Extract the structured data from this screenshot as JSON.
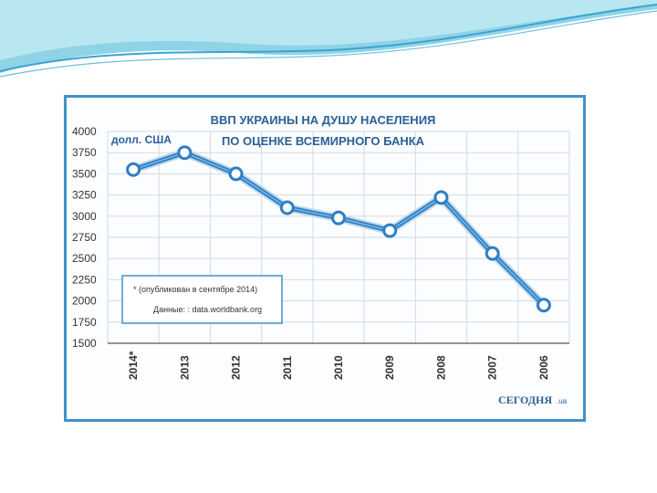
{
  "chart_data": {
    "type": "line",
    "title": "ВВП УКРАИНЫ НА ДУШУ НАСЕЛЕНИЯ",
    "subtitle": "ПО ОЦЕНКЕ ВСЕМИРНОГО БАНКА",
    "ylabel": "долл. США",
    "xlabel": "",
    "categories": [
      "2014*",
      "2013",
      "2012",
      "2011",
      "2010",
      "2009",
      "2008",
      "2007",
      "2006"
    ],
    "values": [
      3550,
      3750,
      3500,
      3100,
      2980,
      2830,
      3220,
      2560,
      1950
    ],
    "ylim": [
      1500,
      4000
    ],
    "yticks": [
      1500,
      1750,
      2000,
      2250,
      2500,
      2750,
      3000,
      3250,
      3500,
      3750,
      4000
    ],
    "grid": true,
    "annotation": {
      "line1": "* (опубликован в сентябре 2014)",
      "line2": "Данные: : data.worldbank.org"
    },
    "source_logo": "СЕГОДНЯ",
    "source_logo_suffix": ".ua",
    "colors": {
      "line": "#2e7fc4",
      "marker_fill": "#ffffff",
      "frame": "#3f93c7",
      "title": "#2c5f97"
    }
  }
}
